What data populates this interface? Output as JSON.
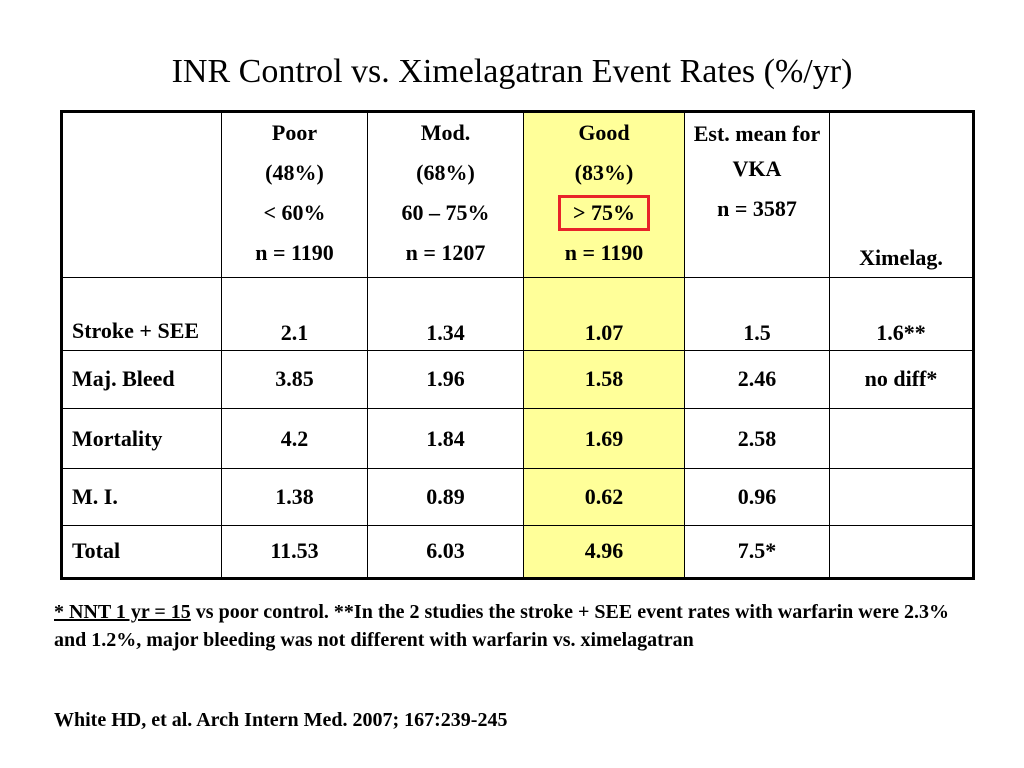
{
  "title": "INR Control vs. Ximelagatran Event Rates (%/yr)",
  "table": {
    "columns": [
      {
        "lines": [
          "Poor",
          "(48%)",
          "< 60%",
          "n = 1190"
        ]
      },
      {
        "lines": [
          "Mod.",
          "(68%)",
          "60 – 75%",
          "n = 1207"
        ]
      },
      {
        "lines": [
          "Good",
          "(83%)",
          "> 75%",
          "n = 1190"
        ]
      },
      {
        "lines": [
          "Est. mean for",
          "VKA",
          "n = 3587"
        ]
      },
      {
        "lines": [
          "Ximelag."
        ]
      }
    ],
    "rows": [
      {
        "label": "Stroke + SEE",
        "values": [
          "2.1",
          "1.34",
          "1.07",
          "1.5",
          "1.6**"
        ]
      },
      {
        "label": "Maj. Bleed",
        "values": [
          "3.85",
          "1.96",
          "1.58",
          "2.46",
          "no diff*"
        ]
      },
      {
        "label": "Mortality",
        "values": [
          "4.2",
          "1.84",
          "1.69",
          "2.58",
          ""
        ]
      },
      {
        "label": "M. I.",
        "values": [
          "1.38",
          "0.89",
          "0.62",
          "0.96",
          ""
        ]
      },
      {
        "label": "Total",
        "values": [
          "11.53",
          "6.03",
          "4.96",
          "7.5*",
          ""
        ]
      }
    ],
    "highlight_color": "#ffff99",
    "box_color": "#e8232a"
  },
  "footnote": {
    "underlined": "* NNT 1 yr = 15",
    "rest": " vs poor control. **In the 2 studies the stroke + SEE event rates with warfarin were 2.3% and 1.2%, major bleeding was not different with warfarin vs. ximelagatran"
  },
  "citation": "White HD, et al. Arch Intern Med. 2007; 167:239-245"
}
